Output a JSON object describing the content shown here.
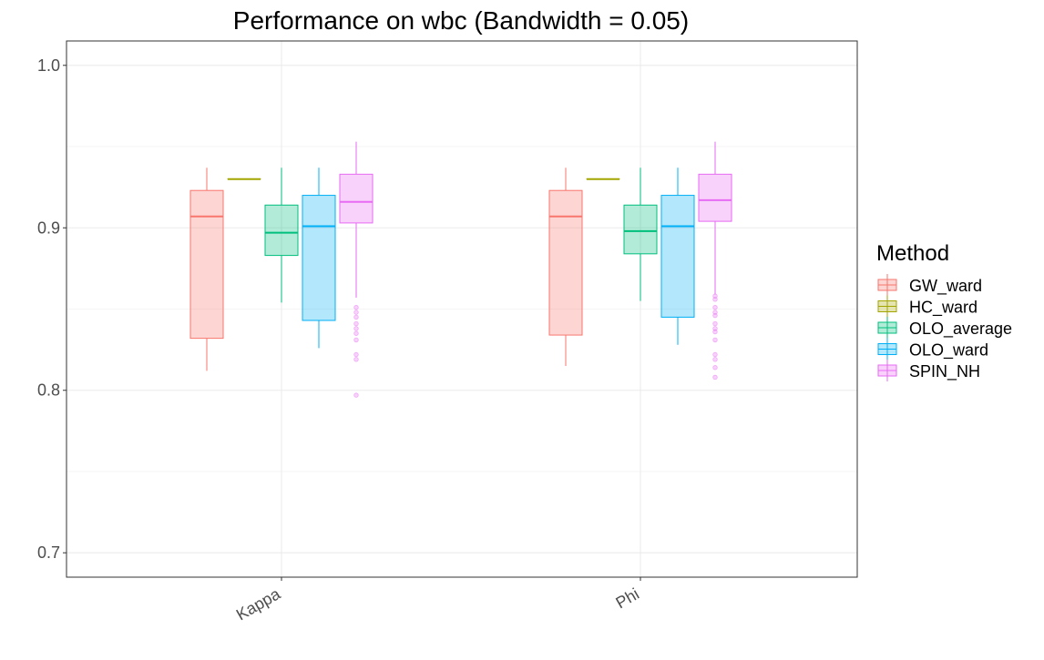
{
  "chart_data": {
    "type": "boxplot",
    "title": "Performance on wbc (Bandwidth = 0.05)",
    "xlabel": "",
    "ylabel": "",
    "categories": [
      "Kappa",
      "Phi"
    ],
    "ylim": [
      0.685,
      1.015
    ],
    "y_ticks": [
      "0.7",
      "0.8",
      "0.9",
      "1.0"
    ],
    "y_tick_values": [
      0.7,
      0.8,
      0.9,
      1.0
    ],
    "grid": true,
    "legend": {
      "title": "Method",
      "position": "right"
    },
    "series": [
      {
        "name": "GW_ward",
        "color": "#F8766D",
        "boxes": [
          {
            "min": 0.812,
            "q1": 0.832,
            "median": 0.907,
            "q3": 0.923,
            "max": 0.937,
            "outliers": []
          },
          {
            "min": 0.815,
            "q1": 0.834,
            "median": 0.907,
            "q3": 0.923,
            "max": 0.937,
            "outliers": []
          }
        ]
      },
      {
        "name": "HC_ward",
        "color": "#A3A500",
        "boxes": [
          {
            "min": 0.93,
            "q1": 0.93,
            "median": 0.93,
            "q3": 0.93,
            "max": 0.93,
            "outliers": []
          },
          {
            "min": 0.93,
            "q1": 0.93,
            "median": 0.93,
            "q3": 0.93,
            "max": 0.93,
            "outliers": []
          }
        ]
      },
      {
        "name": "OLO_average",
        "color": "#00BF7D",
        "boxes": [
          {
            "min": 0.854,
            "q1": 0.883,
            "median": 0.897,
            "q3": 0.914,
            "max": 0.937,
            "outliers": []
          },
          {
            "min": 0.855,
            "q1": 0.884,
            "median": 0.898,
            "q3": 0.914,
            "max": 0.937,
            "outliers": []
          }
        ]
      },
      {
        "name": "OLO_ward",
        "color": "#00B0F6",
        "boxes": [
          {
            "min": 0.826,
            "q1": 0.843,
            "median": 0.901,
            "q3": 0.92,
            "max": 0.937,
            "outliers": []
          },
          {
            "min": 0.828,
            "q1": 0.845,
            "median": 0.901,
            "q3": 0.92,
            "max": 0.937,
            "outliers": []
          }
        ]
      },
      {
        "name": "SPIN_NH",
        "color": "#E76BF3",
        "boxes": [
          {
            "min": 0.857,
            "q1": 0.903,
            "median": 0.916,
            "q3": 0.933,
            "max": 0.953,
            "outliers": [
              0.851,
              0.848,
              0.845,
              0.841,
              0.838,
              0.835,
              0.831,
              0.822,
              0.819,
              0.797
            ]
          },
          {
            "min": 0.859,
            "q1": 0.904,
            "median": 0.917,
            "q3": 0.933,
            "max": 0.953,
            "outliers": [
              0.858,
              0.856,
              0.851,
              0.848,
              0.846,
              0.841,
              0.838,
              0.836,
              0.831,
              0.822,
              0.819,
              0.814,
              0.808
            ]
          }
        ]
      }
    ]
  }
}
